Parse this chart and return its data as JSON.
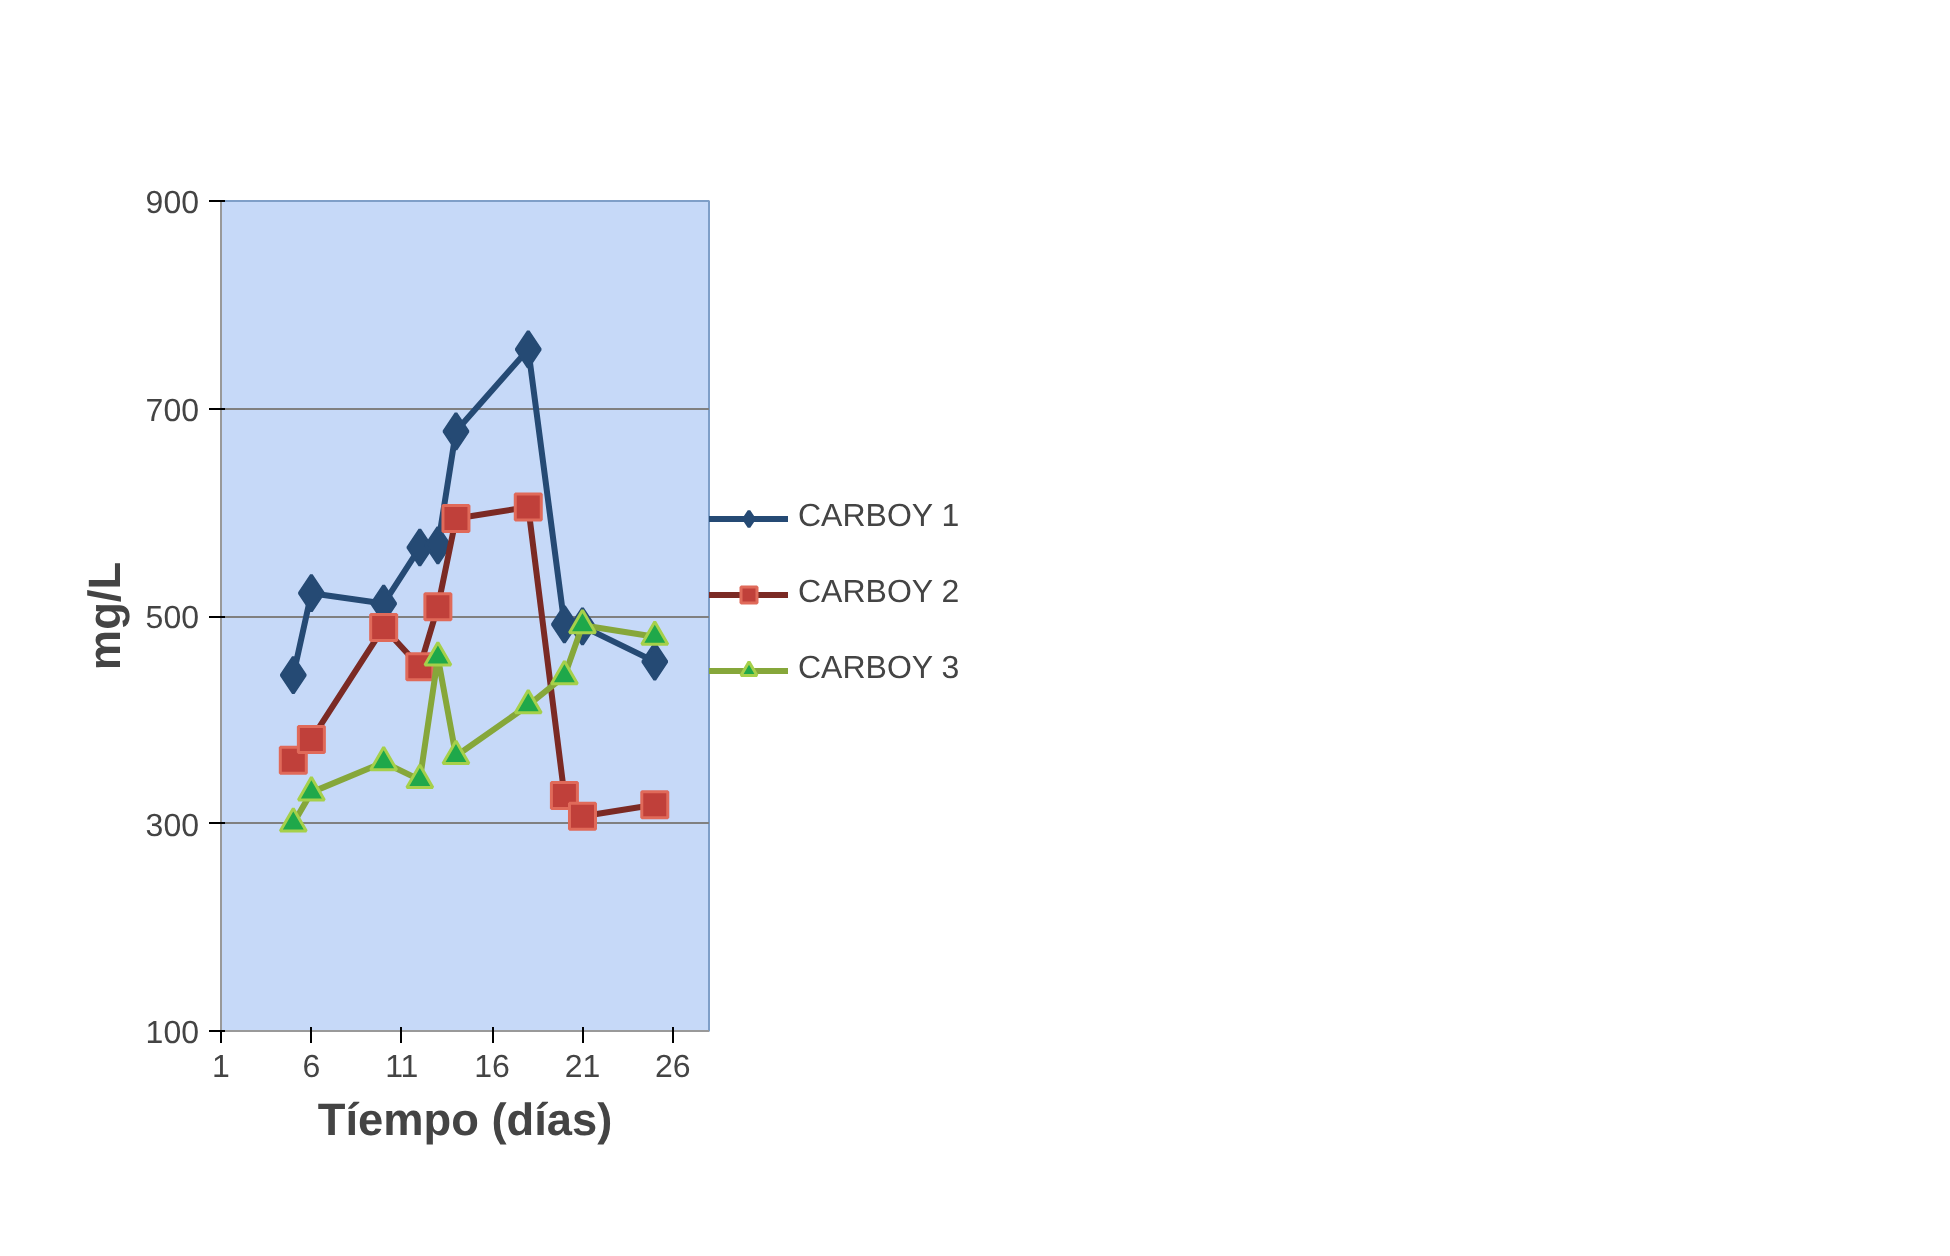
{
  "chart_data": {
    "type": "line",
    "xlabel": "Tíempo (días)",
    "ylabel": "mg/L",
    "x": [
      5,
      6,
      10,
      12,
      13,
      14,
      18,
      20,
      21,
      25
    ],
    "series": [
      {
        "name": "CARBOY 1",
        "color": "#254a74",
        "marker": "diamond",
        "values": [
          443,
          522,
          512,
          566,
          568,
          678,
          757,
          492,
          490,
          456
        ]
      },
      {
        "name": "CARBOY 2",
        "color": "#7b2a24",
        "marker": "square",
        "values": [
          361,
          381,
          489,
          451,
          509,
          594,
          605,
          327,
          307,
          318
        ]
      },
      {
        "name": "CARBOY 3",
        "color": "#86a73a",
        "marker": "triangle",
        "values": [
          300,
          330,
          359,
          342,
          460,
          365,
          414,
          442,
          491,
          480
        ]
      }
    ],
    "xlim": [
      1,
      28
    ],
    "xticks": [
      1,
      6,
      11,
      16,
      21,
      26
    ],
    "ylim": [
      100,
      900
    ],
    "yticks": [
      100,
      300,
      500,
      700,
      900
    ],
    "grid": "y",
    "legend": "right",
    "line_style": "solid"
  }
}
